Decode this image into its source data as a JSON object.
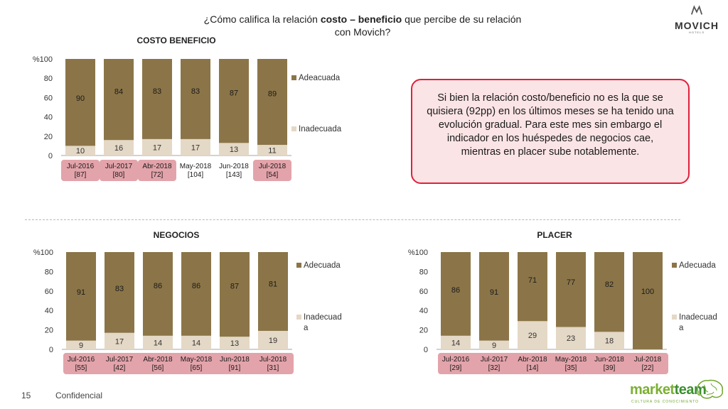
{
  "header": {
    "title_pre": "¿Cómo califica la relación ",
    "title_bold": "costo – beneficio",
    "title_post": " que percibe de su relación",
    "title_line2": "con Movich?"
  },
  "logo": {
    "name": "MOVICH",
    "sub": "HOTELS"
  },
  "callout": {
    "text": "Si bien la relación costo/beneficio no es la que se quisiera (92pp) en los últimos meses se ha tenido una evolución gradual. Para este mes sin embargo el indicador en los huéspedes de negocios cae, mientras en placer sube notablemente."
  },
  "colors": {
    "adecuada": "#8b7548",
    "inadecuada": "#e4d8c6",
    "highlight": "#e3a3aa",
    "callout_border": "#e0203a"
  },
  "footer": {
    "page": "15",
    "confidential": "Confidencial"
  },
  "brand": {
    "part1": "market",
    "part2": "team",
    "tag": "CULTURA DE CONOCIMIENTO"
  },
  "chart_data": [
    {
      "id": "costo",
      "type": "bar",
      "stacked": true,
      "title": "COSTO BENEFICIO",
      "categories": [
        "Jul-2016",
        "Jul-2017",
        "Abr-2018",
        "May-2018",
        "Jun-2018",
        "Jul-2018"
      ],
      "bases": [
        "[87]",
        "[80]",
        "[72]",
        "[104]",
        "[143]",
        "[54]"
      ],
      "highlight": [
        0,
        1,
        2,
        5
      ],
      "series": [
        {
          "name": "Inadecuada",
          "values": [
            10,
            16,
            17,
            17,
            13,
            11
          ]
        },
        {
          "name": "Adeacuada",
          "values": [
            90,
            84,
            83,
            83,
            87,
            89
          ]
        }
      ],
      "ylabel": "%",
      "ylim": [
        0,
        100
      ],
      "yticks": [
        0,
        20,
        40,
        60,
        80,
        100
      ],
      "legend": [
        "Adeacuada",
        "Inadecuada"
      ]
    },
    {
      "id": "negocios",
      "type": "bar",
      "stacked": true,
      "title": "NEGOCIOS",
      "categories": [
        "Jul-2016",
        "Jul-2017",
        "Abr-2018",
        "May-2018",
        "Jun-2018",
        "Jul-2018"
      ],
      "bases": [
        "[55]",
        "[42]",
        "[56]",
        "[65]",
        "[91]",
        "[31]"
      ],
      "highlight": [
        0,
        1,
        2,
        3,
        4,
        5
      ],
      "series": [
        {
          "name": "Inadecuada",
          "values": [
            9,
            17,
            14,
            14,
            13,
            19
          ]
        },
        {
          "name": "Adecuada",
          "values": [
            91,
            83,
            86,
            86,
            87,
            81
          ]
        }
      ],
      "ylabel": "%",
      "ylim": [
        0,
        100
      ],
      "yticks": [
        0,
        20,
        40,
        60,
        80,
        100
      ],
      "legend": [
        "Adecuada",
        "Inadecuad",
        "a"
      ]
    },
    {
      "id": "placer",
      "type": "bar",
      "stacked": true,
      "title": "PLACER",
      "categories": [
        "Jul-2016",
        "Jul-2017",
        "Abr-2018",
        "May-2018",
        "Jun-2018",
        "Jul-2018"
      ],
      "bases": [
        "[29]",
        "[32]",
        "[14]",
        "[35]",
        "[39]",
        "[22]"
      ],
      "highlight": [
        0,
        1,
        2,
        3,
        4,
        5
      ],
      "series": [
        {
          "name": "Inadecuada",
          "values": [
            14,
            9,
            29,
            23,
            18,
            null
          ]
        },
        {
          "name": "Adecuada",
          "values": [
            86,
            91,
            71,
            77,
            82,
            100
          ]
        }
      ],
      "ylabel": "%",
      "ylim": [
        0,
        100
      ],
      "yticks": [
        0,
        20,
        40,
        60,
        80,
        100
      ],
      "legend": [
        "Adecuada",
        "Inadecuad",
        "a"
      ]
    }
  ]
}
